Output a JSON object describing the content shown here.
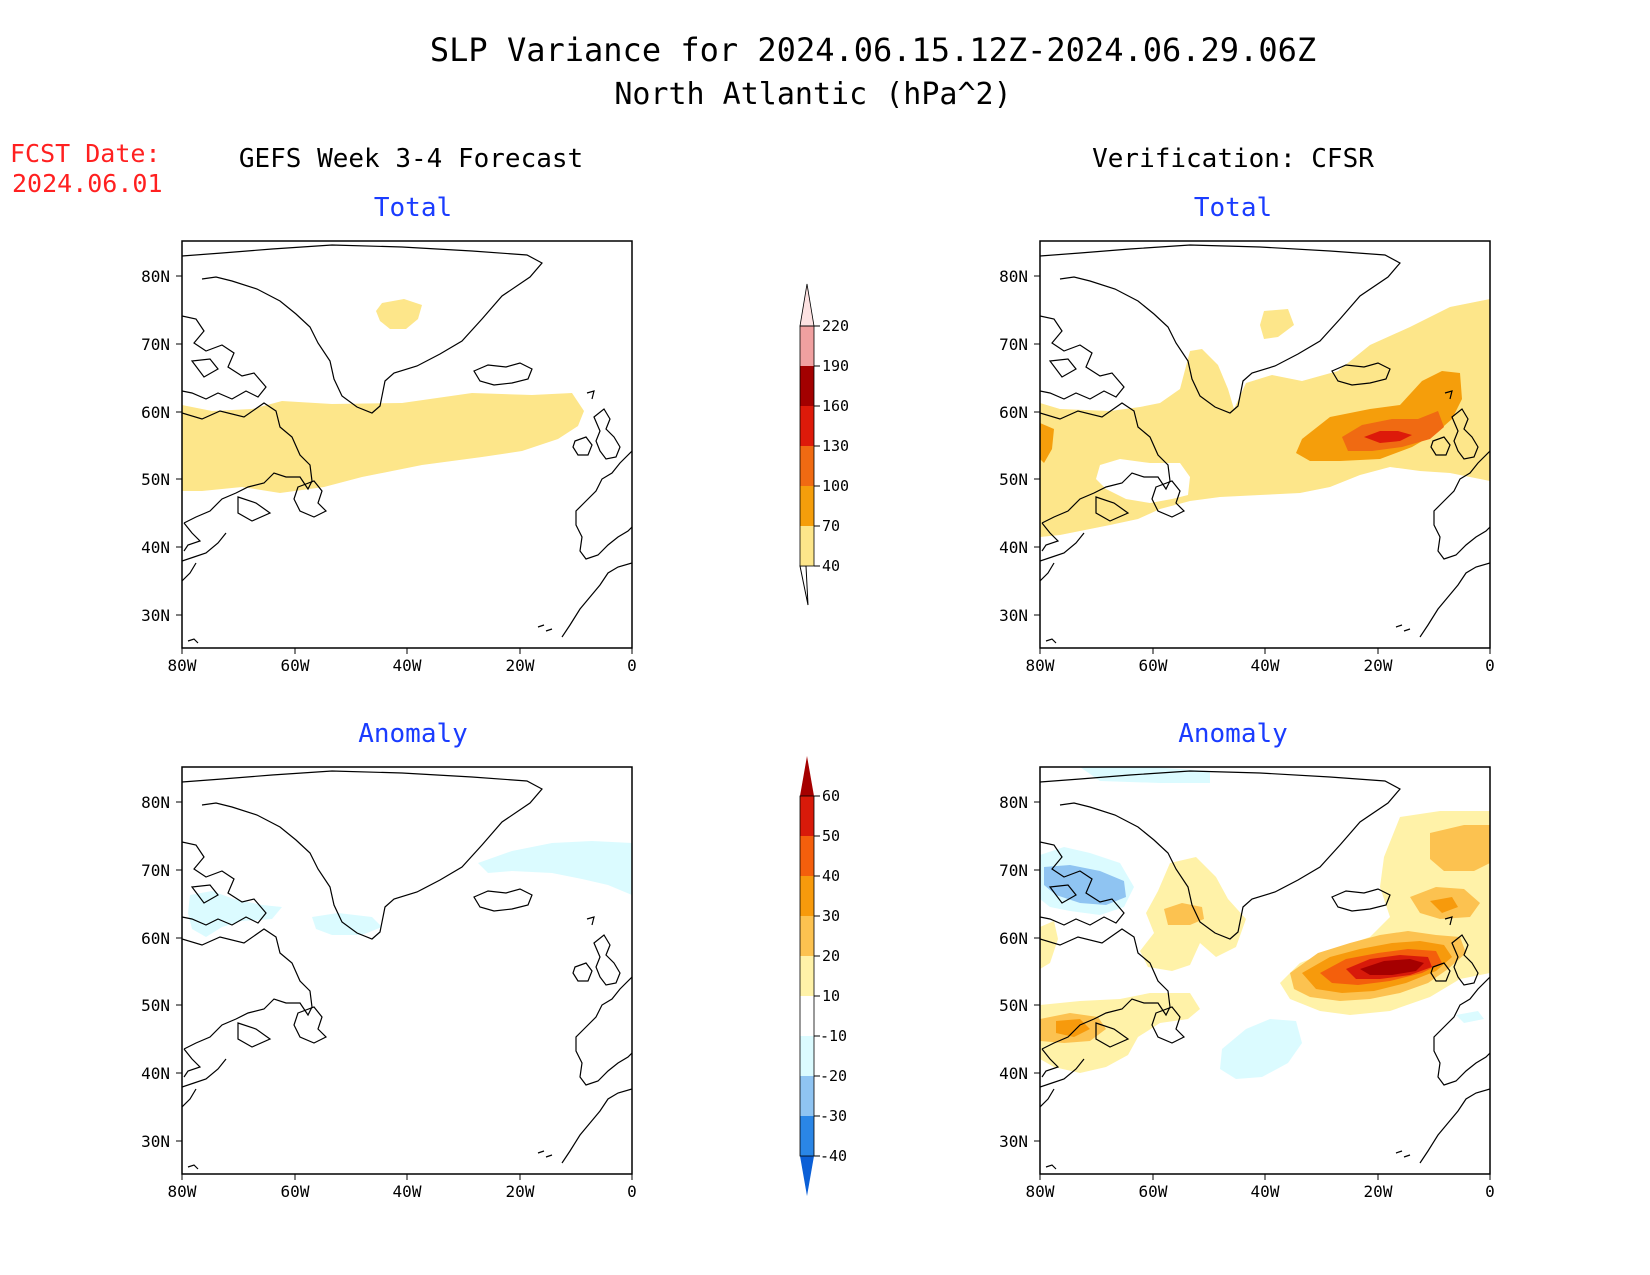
{
  "header": {
    "title_line1": "SLP Variance for 2024.06.15.12Z-2024.06.29.06Z",
    "title_line2": "North Atlantic (hPa^2)",
    "fcst_label": "FCST Date:",
    "fcst_date": "2024.06.01",
    "left_heading": "GEFS Week 3-4 Forecast",
    "right_heading": "Verification: CFSR"
  },
  "panels": [
    {
      "id": "fcst-total",
      "label": "Total"
    },
    {
      "id": "verif-total",
      "label": "Total"
    },
    {
      "id": "fcst-anomaly",
      "label": "Anomaly"
    },
    {
      "id": "verif-anomaly",
      "label": "Anomaly"
    }
  ],
  "axes": {
    "lon_ticks": [
      "80W",
      "60W",
      "40W",
      "20W",
      "0"
    ],
    "lat_ticks": [
      "80N",
      "70N",
      "60N",
      "50N",
      "40N",
      "30N"
    ]
  },
  "colorbars": {
    "total": {
      "labels": [
        "40",
        "70",
        "100",
        "130",
        "160",
        "190",
        "220"
      ],
      "colors": [
        "#fde68a",
        "#f59e0b",
        "#f06a12",
        "#dd1a0a",
        "#a20000",
        "#f0a0a0",
        "#fde2e2"
      ]
    },
    "anomaly": {
      "labels": [
        "-40",
        "-30",
        "-20",
        "-10",
        "10",
        "20",
        "30",
        "40",
        "50",
        "60"
      ],
      "colors": [
        "#0b5fd6",
        "#2a86e6",
        "#8fc4f2",
        "#dbfbff",
        "#ffffff",
        "#fff2a8",
        "#fcc250",
        "#f79a0c",
        "#f45f0c",
        "#d81a0a",
        "#a50000"
      ]
    }
  },
  "colors": {
    "title": "#000000",
    "fcst_date": "#ff2020",
    "panel_label": "#1a3cff"
  }
}
